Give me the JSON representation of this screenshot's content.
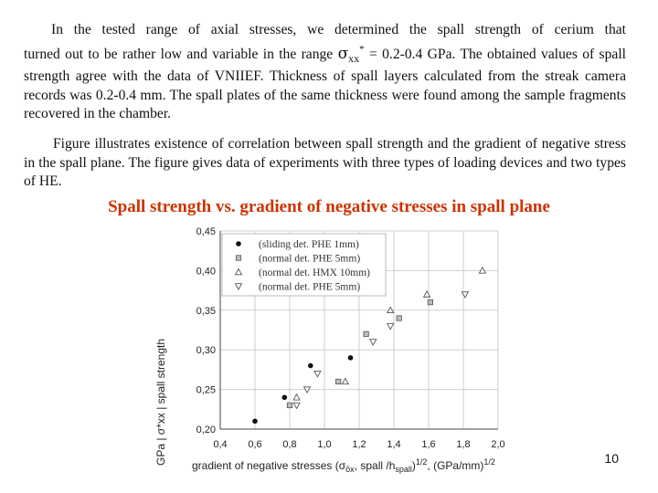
{
  "paragraphs": {
    "p1_line1": "In the tested range of axial stresses, we determined the spall strength of cerium that",
    "p1_pre": "turned out to be rather low and variable in the range ",
    "p1_sigma": "σ",
    "p1_sub": "xx",
    "p1_sup": "*",
    "p1_post": " = 0.2-0.4 GPa. The obtained values of spall strength agree with the data of VNIIEF. Thickness of spall layers calculated from the streak camera records was 0.2-0.4 mm. The spall plates of the same thickness were found among the sample fragments recovered in the chamber.",
    "p2": "Figure illustrates existence of correlation between spall strength and the gradient of negative stress in the spall plane. The figure gives data of experiments with three types of loading devices and two types of HE."
  },
  "figure_title": "Spall strength vs. gradient of negative stresses in spall plane",
  "page_number": "10",
  "chart_data": {
    "type": "scatter",
    "xlabel_parts": [
      "gradient of negative stresses (σ",
      "ōx",
      ", spall",
      " /h",
      "spall",
      ")",
      "1/2",
      ", (GPa/mm)",
      "1/2"
    ],
    "ylabel_visible": "GPa   |  σ*xx  |   spall strength",
    "xlim": [
      0.4,
      2.0
    ],
    "ylim": [
      0.2,
      0.45
    ],
    "xticks": [
      "0,4",
      "0,6",
      "0,8",
      "1,0",
      "1,2",
      "1,4",
      "1,6",
      "1,8",
      "2,0"
    ],
    "yticks": [
      "0,20",
      "0,25",
      "0,30",
      "0,35",
      "0,40",
      "0,45"
    ],
    "grid": true,
    "legend_placement": "top-left",
    "series": [
      {
        "name": "(sliding det. PHE 1mm)",
        "marker": "circle",
        "color": "#111111",
        "points": [
          [
            0.6,
            0.21
          ],
          [
            0.77,
            0.24
          ],
          [
            0.92,
            0.28
          ],
          [
            1.15,
            0.29
          ]
        ]
      },
      {
        "name": "(normal det. PHE 5mm)",
        "marker": "square",
        "color": "#8a8a8a",
        "points": [
          [
            0.8,
            0.23
          ],
          [
            1.08,
            0.26
          ],
          [
            1.24,
            0.32
          ],
          [
            1.43,
            0.34
          ],
          [
            1.61,
            0.36
          ]
        ]
      },
      {
        "name": "(normal det. HMX 10mm)",
        "marker": "triangle-up",
        "color": "#8a8a8a",
        "points": [
          [
            0.84,
            0.24
          ],
          [
            1.12,
            0.26
          ],
          [
            1.38,
            0.35
          ],
          [
            1.59,
            0.37
          ],
          [
            1.91,
            0.4
          ]
        ]
      },
      {
        "name": "(normal det. PHE 5mm)",
        "marker": "triangle-down",
        "color": "#8a8a8a",
        "points": [
          [
            0.84,
            0.23
          ],
          [
            0.9,
            0.25
          ],
          [
            0.96,
            0.27
          ],
          [
            1.28,
            0.31
          ],
          [
            1.38,
            0.33
          ],
          [
            1.81,
            0.37
          ]
        ]
      }
    ]
  }
}
